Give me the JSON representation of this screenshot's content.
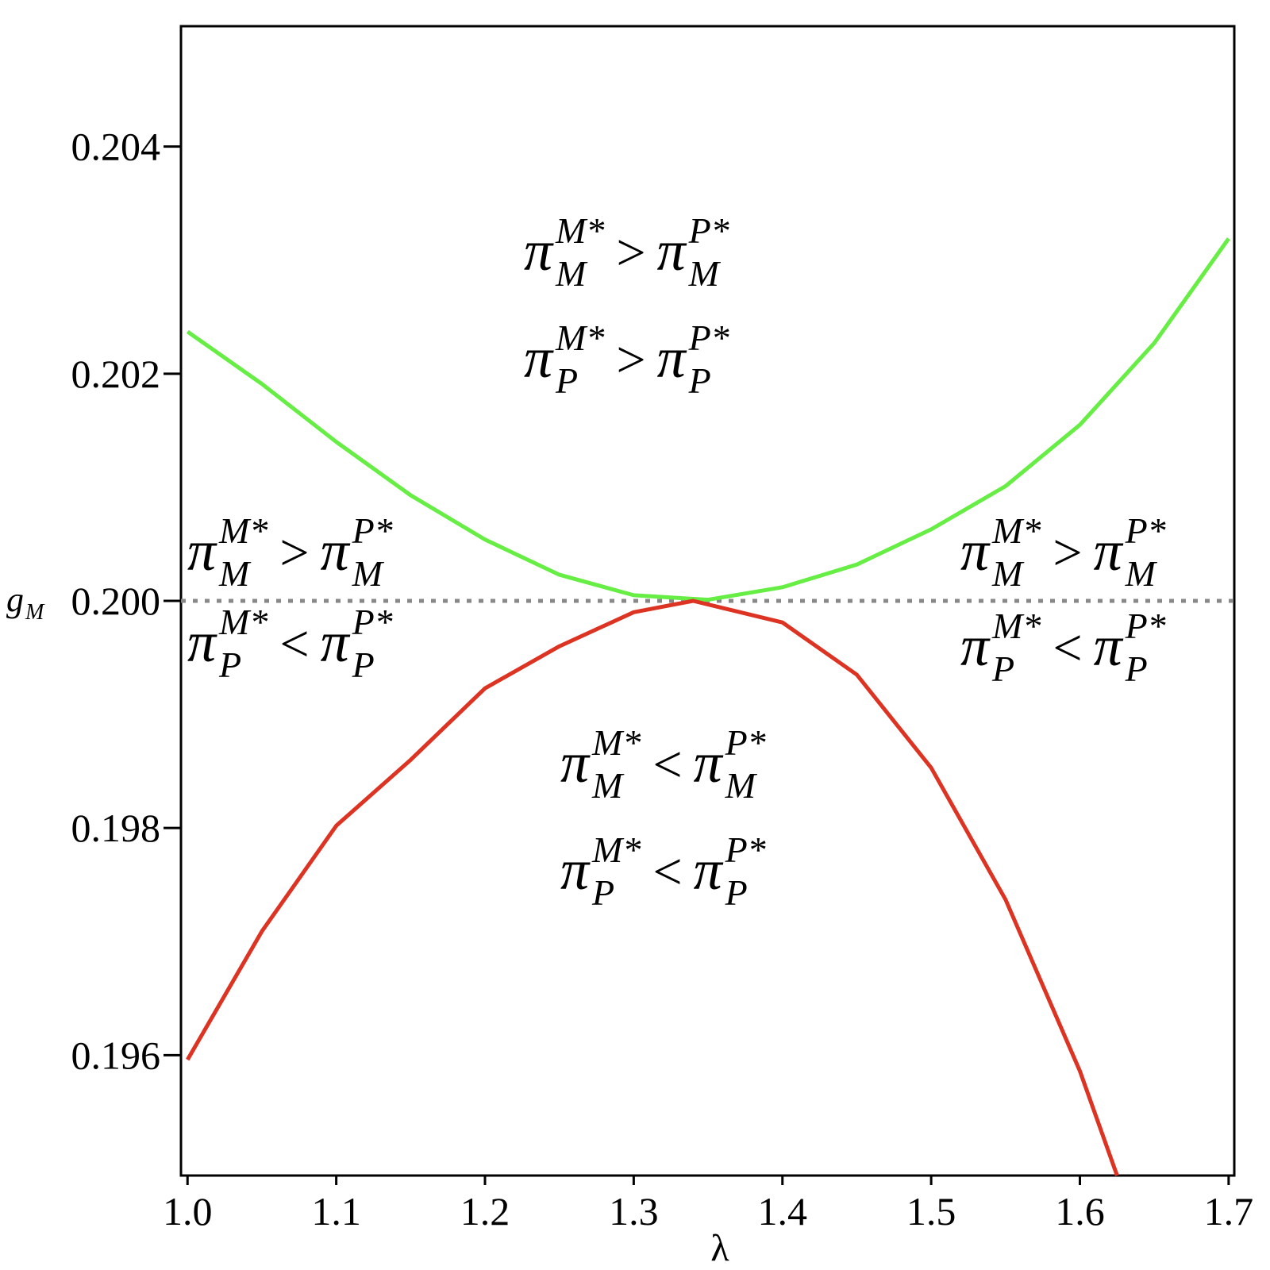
{
  "chart_data": {
    "type": "line",
    "xlabel": "λ",
    "ylabel": "g",
    "ylabel_subscript": "M",
    "xlim": [
      0.9956,
      1.7038
    ],
    "ylim": [
      0.19494,
      0.20506
    ],
    "xticks": [
      {
        "value": 1,
        "label": "1.0"
      },
      1.1,
      1.2,
      1.3,
      1.4,
      1.5,
      1.6,
      1.7
    ],
    "yticks": [
      0.196,
      0.198,
      {
        "value": 0.2,
        "label": "0.200"
      },
      0.202,
      0.204
    ],
    "hlines": [
      {
        "value": 0.2,
        "color": "#888888",
        "dash": true
      }
    ],
    "series": [
      {
        "color": "#66ee44",
        "x": [
          1.0,
          1.05,
          1.1,
          1.15,
          1.2,
          1.25,
          1.3,
          1.35,
          1.4,
          1.45,
          1.5,
          1.55,
          1.6,
          1.65,
          1.7
        ],
        "values": [
          0.20237,
          0.20191,
          0.2014,
          0.20093,
          0.20054,
          0.20023,
          0.20005,
          0.20001,
          0.20012,
          0.20032,
          0.20063,
          0.20101,
          0.20155,
          0.20227,
          0.20319
        ]
      },
      {
        "color": "#dd3322",
        "x": [
          1.0,
          1.05,
          1.1,
          1.15,
          1.2,
          1.25,
          1.3,
          1.34,
          1.4,
          1.45,
          1.5,
          1.55,
          1.6,
          1.625
        ],
        "values": [
          0.19596,
          0.19709,
          0.19802,
          0.1986,
          0.19923,
          0.1996,
          0.1999,
          0.2,
          0.19981,
          0.19935,
          0.19853,
          0.19737,
          0.19586,
          0.19494
        ]
      }
    ],
    "annotations": [
      {
        "lines": [
          [
            {
              "text": "π",
              "sup": "M*",
              "sub": "M"
            },
            {
              "text": ">"
            },
            {
              "text": "π",
              "sup": "P*",
              "sub": "M"
            }
          ],
          [
            {
              "text": "π",
              "sup": "M*",
              "sub": "P"
            },
            {
              "text": ">"
            },
            {
              "text": "π",
              "sup": "P*",
              "sub": "P"
            }
          ]
        ]
      },
      {
        "lines": [
          [
            {
              "text": "π",
              "sup": "M*",
              "sub": "M"
            },
            {
              "text": ">"
            },
            {
              "text": "π",
              "sup": "P*",
              "sub": "M"
            }
          ],
          [
            {
              "text": "π",
              "sup": "M*",
              "sub": "P"
            },
            {
              "text": "<"
            },
            {
              "text": "π",
              "sup": "P*",
              "sub": "P"
            }
          ]
        ]
      },
      {
        "lines": [
          [
            {
              "text": "π",
              "sup": "M*",
              "sub": "M"
            },
            {
              "text": ">"
            },
            {
              "text": "π",
              "sup": "P*",
              "sub": "M"
            }
          ],
          [
            {
              "text": "π",
              "sup": "M*",
              "sub": "P"
            },
            {
              "text": "<"
            },
            {
              "text": "π",
              "sup": "P*",
              "sub": "P"
            }
          ]
        ]
      },
      {
        "lines": [
          [
            {
              "text": "π",
              "sup": "M*",
              "sub": "M"
            },
            {
              "text": "<"
            },
            {
              "text": "π",
              "sup": "P*",
              "sub": "M"
            }
          ],
          [
            {
              "text": "π",
              "sup": "M*",
              "sub": "P"
            },
            {
              "text": "<"
            },
            {
              "text": "π",
              "sup": "P*",
              "sub": "P"
            }
          ]
        ]
      }
    ]
  }
}
